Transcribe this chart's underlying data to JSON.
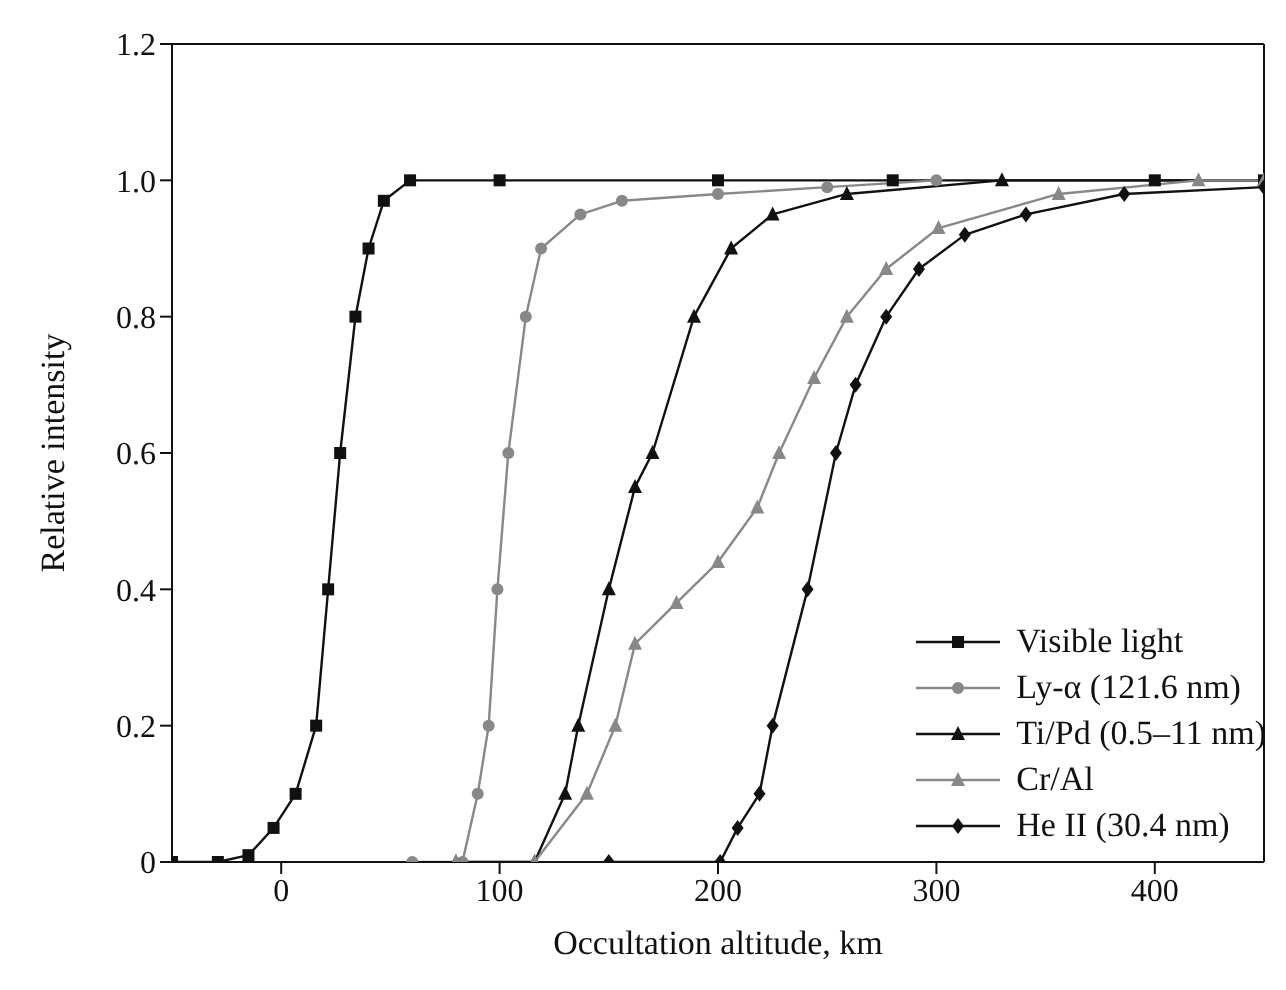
{
  "chart_data": {
    "type": "line",
    "xlabel": "Occultation altitude, km",
    "ylabel": "Relative intensity",
    "xlim": [
      -50,
      450
    ],
    "xticks": [
      0,
      100,
      200,
      300,
      400
    ],
    "ylim": [
      0,
      1.2
    ],
    "yticks": [
      0,
      0.2,
      0.4,
      0.6,
      0.8,
      {
        "value": 1,
        "label": "1.0"
      },
      1.2
    ],
    "legend": "bottom right",
    "series": [
      {
        "name": "Visible light",
        "color": "#111111",
        "marker": "square",
        "x": [
          -50,
          -29,
          -15,
          -3.5,
          6.6,
          16,
          21.5,
          27,
          34,
          40,
          47,
          59,
          100,
          200,
          280,
          400,
          450
        ],
        "values": [
          0,
          0,
          0.01,
          0.05,
          0.1,
          0.2,
          0.4,
          0.6,
          0.8,
          0.9,
          0.97,
          1,
          1,
          1,
          1,
          1,
          1
        ]
      },
      {
        "name": "Ly-α (121.6 nm)",
        "color": "#888888",
        "marker": "circle",
        "x": [
          60,
          83,
          90,
          95,
          99,
          104,
          112,
          119,
          137,
          156,
          200,
          250,
          300
        ],
        "values": [
          0,
          0,
          0.1,
          0.2,
          0.4,
          0.6,
          0.8,
          0.9,
          0.95,
          0.97,
          0.98,
          0.99,
          1
        ]
      },
      {
        "name": "Ti/Pd (0.5–11 nm)",
        "color": "#111111",
        "marker": "triangle",
        "x": [
          80,
          116,
          130,
          136,
          150,
          162,
          170,
          189,
          206,
          225,
          259,
          330,
          450
        ],
        "values": [
          0,
          0,
          0.1,
          0.2,
          0.4,
          0.55,
          0.6,
          0.8,
          0.9,
          0.95,
          0.98,
          1,
          1
        ]
      },
      {
        "name": "Cr/Al",
        "color": "#888888",
        "marker": "triangle",
        "x": [
          80,
          116,
          140,
          153,
          162,
          181,
          200,
          218,
          228,
          244,
          259,
          277,
          301,
          356,
          420,
          450
        ],
        "values": [
          0,
          0,
          0.1,
          0.2,
          0.32,
          0.38,
          0.44,
          0.52,
          0.6,
          0.71,
          0.8,
          0.87,
          0.93,
          0.98,
          1,
          1
        ]
      },
      {
        "name": "He II (30.4 nm)",
        "color": "#111111",
        "marker": "diamond",
        "x": [
          150,
          201,
          209,
          219,
          225,
          241,
          254,
          263,
          277,
          292,
          313,
          341,
          386,
          450
        ],
        "values": [
          0,
          0,
          0.05,
          0.1,
          0.2,
          0.4,
          0.6,
          0.7,
          0.8,
          0.87,
          0.92,
          0.95,
          0.98,
          0.99
        ]
      }
    ]
  }
}
